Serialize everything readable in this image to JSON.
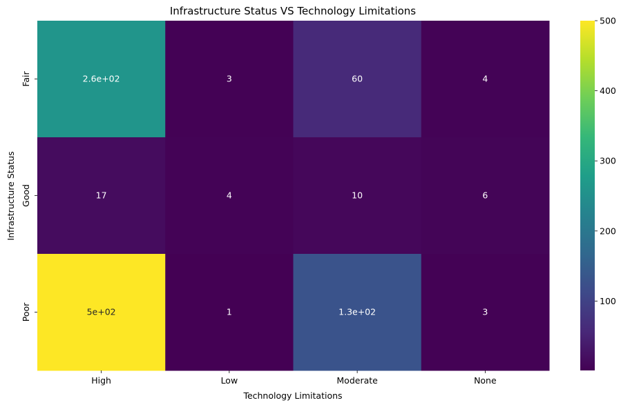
{
  "chart_data": {
    "type": "heatmap",
    "title": "Infrastructure Status VS Technology Limitations",
    "xlabel": "Technology Limitations",
    "ylabel": "Infrastructure Status",
    "x_categories": [
      "High",
      "Low",
      "Moderate",
      "None"
    ],
    "y_categories": [
      "Fair",
      "Good",
      "Poor"
    ],
    "values": [
      [
        260,
        3,
        60,
        4
      ],
      [
        17,
        4,
        10,
        6
      ],
      [
        500,
        1,
        130,
        3
      ]
    ],
    "cell_labels": [
      [
        "2.6e+02",
        "3",
        "60",
        "4"
      ],
      [
        "17",
        "4",
        "10",
        "6"
      ],
      [
        "5e+02",
        "1",
        "1.3e+02",
        "3"
      ]
    ],
    "colormap": "viridis",
    "vmin": 1,
    "vmax": 500,
    "colorbar_ticks": [
      100,
      200,
      300,
      400,
      500
    ],
    "colorbar_tick_labels": [
      "100",
      "200",
      "300",
      "400",
      "500"
    ],
    "grid": false
  }
}
